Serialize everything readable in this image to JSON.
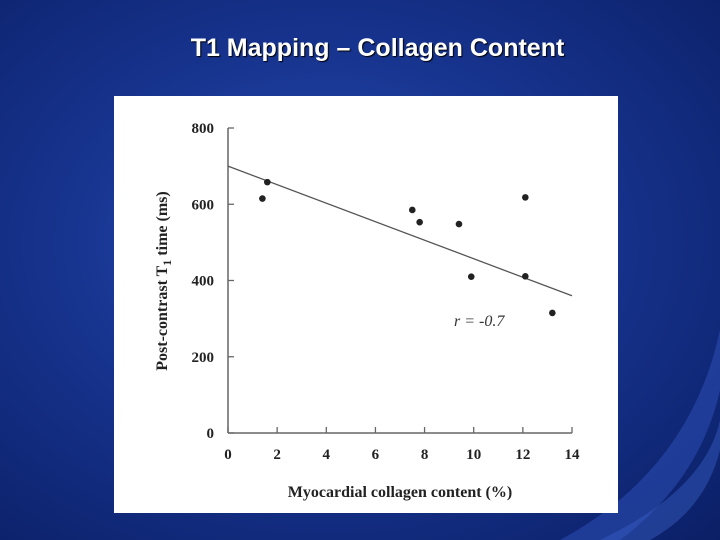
{
  "slide": {
    "title": "T1 Mapping – Collagen Content"
  },
  "colors": {
    "background": "#1a3a9e",
    "panel": "#ffffff",
    "ink": "#222222"
  },
  "chart_data": {
    "type": "scatter",
    "title": "",
    "xlabel": "Myocardial collagen content (%)",
    "ylabel_main": "Post-contrast T",
    "ylabel_sub": "1",
    "ylabel_end": " time (ms)",
    "xlim": [
      0,
      14
    ],
    "ylim": [
      0,
      800
    ],
    "x_ticks": [
      "0",
      "2",
      "4",
      "6",
      "8",
      "10",
      "12",
      "14"
    ],
    "y_ticks": [
      "0",
      "200",
      "400",
      "600",
      "800"
    ],
    "grid": false,
    "points": [
      {
        "x": 1.4,
        "y": 615
      },
      {
        "x": 1.6,
        "y": 658
      },
      {
        "x": 7.5,
        "y": 585
      },
      {
        "x": 7.8,
        "y": 553
      },
      {
        "x": 9.4,
        "y": 548
      },
      {
        "x": 9.9,
        "y": 410
      },
      {
        "x": 12.1,
        "y": 618
      },
      {
        "x": 12.1,
        "y": 411
      },
      {
        "x": 13.2,
        "y": 315
      }
    ],
    "trendline": {
      "x": [
        0,
        14
      ],
      "y": [
        700,
        360
      ]
    },
    "annotation": "r = -0.7"
  }
}
